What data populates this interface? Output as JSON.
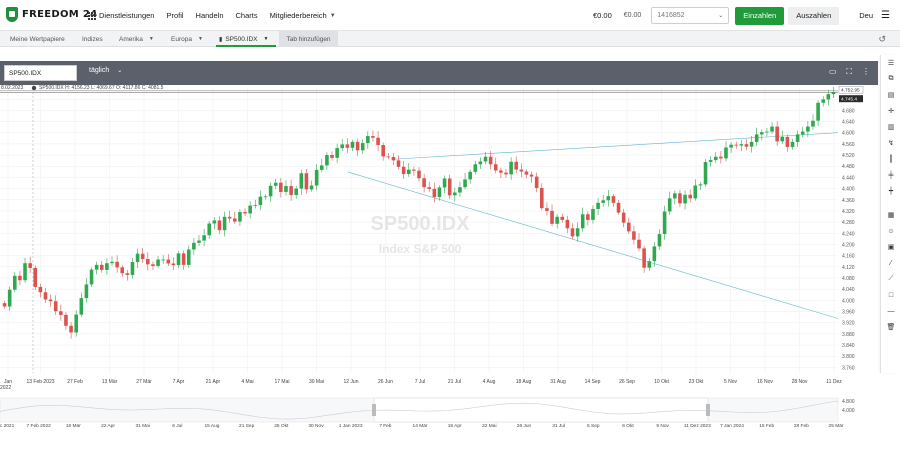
{
  "brand": {
    "name": "FREEDOM 24",
    "accent": "#1f9b3a"
  },
  "nav": {
    "items": [
      "Dienstleistungen",
      "Profil",
      "Handeln",
      "Charts",
      "Mitgliederbereich"
    ],
    "balance1": "€0.00",
    "balance2": "€0.00",
    "account": "1416852",
    "deposit": "Einzahlen",
    "withdraw": "Auszahlen",
    "language": "Deu"
  },
  "tabs": {
    "items": [
      "Meine Wertpapiere",
      "Indizes",
      "Amerika",
      "Europa"
    ],
    "active": "SP500.IDX",
    "add": "Tab hinzufügen"
  },
  "chart_toolbar": {
    "symbol": "SP500.IDX",
    "interval": "täglich"
  },
  "chart_data": {
    "type": "candlestick",
    "ohlc_legend": "SP500.IDX H: 4156.23 L: 4069.67 O: 4117.86 C: 4081.5",
    "date_prefix": "8.02.2023",
    "watermark_symbol": "SP500.IDX",
    "watermark_name": "Index S&P 500",
    "price_labels": [
      "4.720",
      "4.680",
      "4.640",
      "4.600",
      "4.560",
      "4.520",
      "4.480",
      "4.440",
      "4.400",
      "4.360",
      "4.320",
      "4.280",
      "4.240",
      "4.200",
      "4.160",
      "4.120",
      "4.080",
      "4.040",
      "4.000",
      "3.960",
      "3.920",
      "3.880",
      "3.840",
      "3.800",
      "3.760"
    ],
    "current_price": "4.745.4",
    "prev_price": "4.752.95",
    "x_labels": [
      "Jan",
      "13 Feb 2023",
      "27 Feb",
      "13 Mär",
      "27 Mär",
      "7 Apr",
      "21 Apr",
      "4 Mai",
      "17 Mai",
      "30 Mai",
      "12 Jun",
      "26 Jun",
      "7 Jul",
      "21 Jul",
      "4 Aug",
      "18 Aug",
      "31 Aug",
      "14 Sep",
      "26 Sep",
      "10 Okt",
      "23 Okt",
      "5 Nov",
      "16 Nov",
      "28 Nov",
      "11 Dez"
    ],
    "x_sub": "2022",
    "nav_x_labels": [
      "Dec 2021",
      "7 Feb 2022",
      "16 Mär",
      "22 Apr",
      "31 Mai",
      "6 Jul",
      "15 Aug",
      "21 Sep",
      "25 Okt",
      "30 Nov",
      "1 Jan 2023",
      "7 Feb",
      "14 Mär",
      "18 Apr",
      "22 Mai",
      "26 Jun",
      "31 Jul",
      "5 Sep",
      "6 Okt",
      "9 Nov",
      "11 Dez 2023",
      "7 Jan 2024",
      "15 Feb",
      "28 Feb",
      "25 Mär"
    ],
    "nav_price_labels": [
      "4.800",
      "4.000"
    ],
    "ylim": [
      3740,
      4760
    ],
    "closes": [
      3978,
      4038,
      4088,
      4072,
      4133,
      4116,
      4048,
      4029,
      4003,
      3997,
      3961,
      3948,
      3909,
      3885,
      3949,
      4008,
      4057,
      4110,
      4127,
      4109,
      4133,
      4138,
      4118,
      4097,
      4091,
      4137,
      4167,
      4148,
      4129,
      4123,
      4146,
      4146,
      4132,
      4126,
      4168,
      4127,
      4182,
      4206,
      4214,
      4233,
      4275,
      4286,
      4251,
      4299,
      4293,
      4282,
      4316,
      4311,
      4339,
      4341,
      4371,
      4372,
      4410,
      4421,
      4388,
      4409,
      4377,
      4400,
      4455,
      4397,
      4411,
      4467,
      4483,
      4520,
      4510,
      4545,
      4558,
      4546,
      4567,
      4537,
      4563,
      4588,
      4582,
      4556,
      4515,
      4513,
      4501,
      4478,
      4452,
      4468,
      4464,
      4437,
      4405,
      4399,
      4370,
      4404,
      4436,
      4376,
      4386,
      4405,
      4433,
      4460,
      4487,
      4497,
      4514,
      4487,
      4465,
      4457,
      4451,
      4496,
      4468,
      4461,
      4450,
      4443,
      4402,
      4330,
      4320,
      4274,
      4299,
      4288,
      4258,
      4229,
      4258,
      4308,
      4288,
      4327,
      4349,
      4358,
      4373,
      4349,
      4314,
      4278,
      4247,
      4217,
      4186,
      4117,
      4140,
      4193,
      4237,
      4318,
      4365,
      4383,
      4347,
      4378,
      4365,
      4411,
      4415,
      4495,
      4502,
      4514,
      4508,
      4547,
      4557,
      4554,
      4559,
      4550,
      4567,
      4594,
      4602,
      4604,
      4622,
      4569,
      4585,
      4549,
      4567,
      4594,
      4604,
      4622,
      4643,
      4707,
      4719,
      4738,
      4745
    ]
  }
}
